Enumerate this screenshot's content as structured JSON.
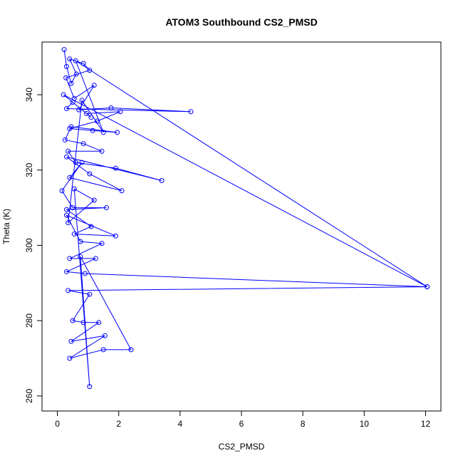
{
  "chart_data": {
    "type": "line",
    "title": "ATOM3 Southbound CS2_PMSD",
    "xlabel": "CS2_PMSD",
    "ylabel": "Theta (K)",
    "xlim": [
      -0.5,
      12.5
    ],
    "ylim": [
      256,
      354
    ],
    "xticks": [
      0,
      2,
      4,
      6,
      8,
      10,
      12
    ],
    "yticks": [
      260,
      280,
      300,
      320,
      340
    ],
    "grid": false,
    "legend": "none",
    "colors": {
      "series": "#0000ff"
    },
    "series": [
      {
        "points": [
          [
            0.22,
            352.0
          ],
          [
            0.3,
            347.5
          ],
          [
            0.45,
            343.0
          ],
          [
            0.62,
            345.5
          ],
          [
            0.4,
            349.5
          ],
          [
            0.85,
            348.3
          ],
          [
            1.05,
            346.5
          ],
          [
            0.28,
            344.5
          ],
          [
            0.55,
            339.0
          ],
          [
            1.2,
            342.5
          ],
          [
            0.7,
            336.0
          ],
          [
            1.75,
            336.5
          ],
          [
            4.35,
            335.5
          ],
          [
            0.3,
            336.3
          ],
          [
            0.5,
            338.0
          ],
          [
            0.95,
            335.0
          ],
          [
            2.05,
            335.5
          ],
          [
            1.3,
            333.0
          ],
          [
            0.4,
            331.0
          ],
          [
            1.15,
            330.5
          ],
          [
            1.95,
            330.0
          ],
          [
            0.45,
            331.5
          ],
          [
            0.25,
            328.0
          ],
          [
            0.85,
            327.0
          ],
          [
            1.45,
            325.0
          ],
          [
            0.35,
            325.0
          ],
          [
            0.6,
            322.0
          ],
          [
            1.9,
            320.5
          ],
          [
            3.4,
            317.2
          ],
          [
            0.3,
            323.5
          ],
          [
            1.05,
            319.0
          ],
          [
            2.1,
            314.5
          ],
          [
            0.4,
            318.0
          ],
          [
            0.8,
            322.0
          ],
          [
            0.15,
            314.5
          ],
          [
            0.5,
            310.0
          ],
          [
            1.6,
            310.0
          ],
          [
            0.3,
            309.5
          ],
          [
            1.1,
            305.0
          ],
          [
            0.55,
            303.0
          ],
          [
            1.9,
            302.5
          ],
          [
            0.3,
            308.0
          ],
          [
            0.75,
            301.0
          ],
          [
            1.45,
            300.5
          ],
          [
            0.4,
            296.5
          ],
          [
            1.25,
            296.5
          ],
          [
            0.3,
            293.0
          ],
          [
            0.9,
            292.5
          ],
          [
            12.05,
            289.0
          ],
          [
            0.35,
            288.0
          ],
          [
            1.05,
            287.0
          ],
          [
            0.5,
            280.0
          ],
          [
            0.85,
            279.5
          ],
          [
            1.35,
            279.5
          ],
          [
            0.45,
            274.5
          ],
          [
            1.55,
            276.0
          ],
          [
            0.4,
            270.0
          ],
          [
            1.5,
            272.3
          ],
          [
            2.4,
            272.3
          ],
          [
            0.75,
            297.0
          ],
          [
            1.05,
            262.5
          ],
          [
            0.55,
            315.0
          ],
          [
            1.2,
            312.0
          ],
          [
            0.35,
            306.0
          ],
          [
            0.8,
            338.5
          ],
          [
            1.5,
            330.0
          ],
          [
            0.6,
            349.0
          ],
          [
            12.05,
            289.0
          ],
          [
            0.2,
            340.0
          ],
          [
            1.1,
            334.0
          ]
        ]
      }
    ]
  }
}
